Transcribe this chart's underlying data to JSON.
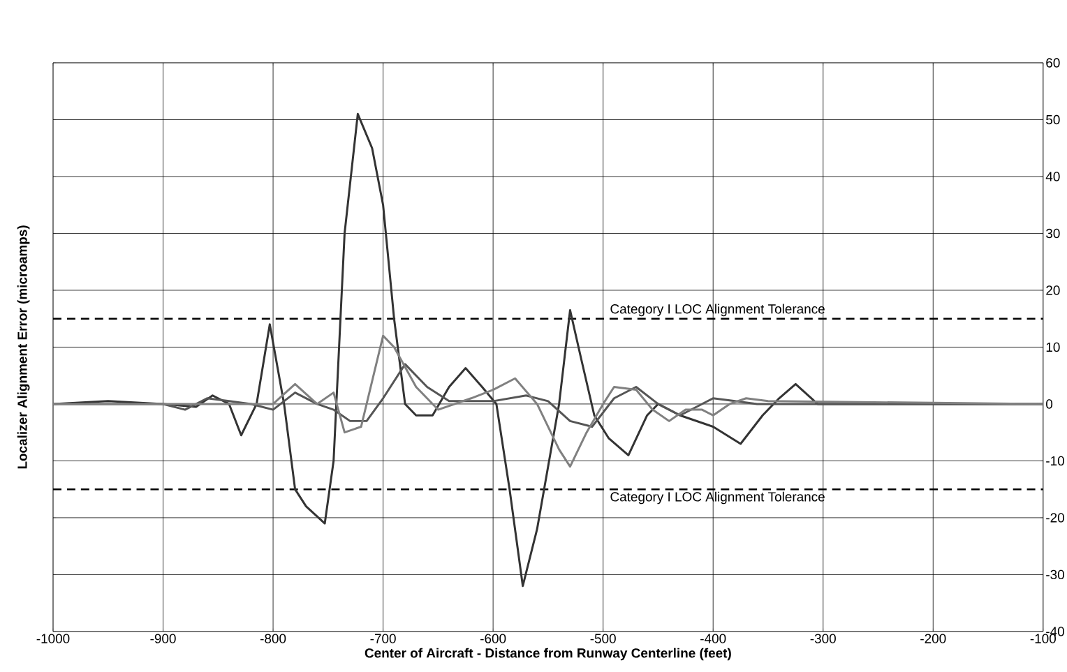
{
  "chart_data": {
    "type": "line",
    "xlabel": "Center of Aircraft - Distance from Runway Centerline (feet)",
    "ylabel": "Localizer Alignment Error (microamps)",
    "xlim": [
      -1000,
      -100
    ],
    "ylim": [
      -40,
      60
    ],
    "xticks": [
      -1000,
      -900,
      -800,
      -700,
      -600,
      -500,
      -400,
      -300,
      -200,
      -100
    ],
    "yticks": [
      -40,
      -30,
      -20,
      -10,
      0,
      10,
      20,
      30,
      40,
      50,
      60
    ],
    "grid": true,
    "marker": "none",
    "line_style": "solid",
    "ref_lines": [
      {
        "axis": "y",
        "value": 15,
        "label": "Category I LOC Alignment Tolerance",
        "color": "#000000",
        "line_style": "dashed"
      },
      {
        "axis": "y",
        "value": -15,
        "label": "Category I LOC Alignment Tolerance",
        "color": "#000000",
        "line_style": "dashed"
      }
    ],
    "series": [
      {
        "color": "#333333",
        "x": [
          -1000,
          -950,
          -900,
          -870,
          -855,
          -840,
          -829,
          -815,
          -803,
          -790,
          -780,
          -770,
          -753,
          -745,
          -735,
          -723,
          -710,
          -700,
          -690,
          -680,
          -670,
          -655,
          -640,
          -625,
          -610,
          -597,
          -585,
          -573,
          -560,
          -540,
          -530,
          -520,
          -508,
          -495,
          -477,
          -460,
          -450,
          -430,
          -400,
          -375,
          -355,
          -340,
          -325,
          -305,
          -250,
          -100
        ],
        "values": [
          0,
          0.5,
          0,
          -0.5,
          1.5,
          0,
          -5.5,
          0,
          14,
          0,
          -15,
          -18,
          -21,
          -10,
          30,
          51,
          45,
          35,
          15,
          0,
          -2,
          -2,
          3,
          6.3,
          3,
          0,
          -15,
          -32,
          -22,
          0,
          16.5,
          8,
          -2,
          -6,
          -9,
          -2,
          0,
          -2,
          -4,
          -7,
          -2,
          1,
          3.5,
          0,
          0,
          0
        ]
      },
      {
        "color": "#555555",
        "x": [
          -1000,
          -900,
          -880,
          -860,
          -840,
          -820,
          -800,
          -780,
          -760,
          -745,
          -730,
          -715,
          -700,
          -680,
          -660,
          -640,
          -600,
          -570,
          -550,
          -530,
          -510,
          -490,
          -470,
          -450,
          -430,
          -400,
          -380,
          -360,
          -100
        ],
        "values": [
          0,
          0,
          -1,
          1,
          0.5,
          0,
          -1,
          2,
          0,
          -1,
          -3,
          -3,
          1,
          7,
          3,
          0.5,
          0.5,
          1.5,
          0.5,
          -3,
          -4,
          1,
          3,
          0,
          -2,
          1,
          0.5,
          0,
          0
        ]
      },
      {
        "color": "#808080",
        "x": [
          -1000,
          -900,
          -800,
          -780,
          -760,
          -745,
          -735,
          -720,
          -700,
          -690,
          -670,
          -650,
          -620,
          -600,
          -580,
          -560,
          -540,
          -530,
          -515,
          -500,
          -490,
          -470,
          -455,
          -440,
          -425,
          -410,
          -400,
          -385,
          -370,
          -350,
          -100
        ],
        "values": [
          0,
          0,
          0,
          3.5,
          0,
          2,
          -5,
          -4,
          12,
          10,
          3,
          -1,
          1,
          2.5,
          4.5,
          0,
          -8,
          -11,
          -5,
          0,
          3,
          2.5,
          -1,
          -3,
          -1,
          -1,
          -2,
          0,
          1,
          0.5,
          0
        ]
      }
    ]
  }
}
